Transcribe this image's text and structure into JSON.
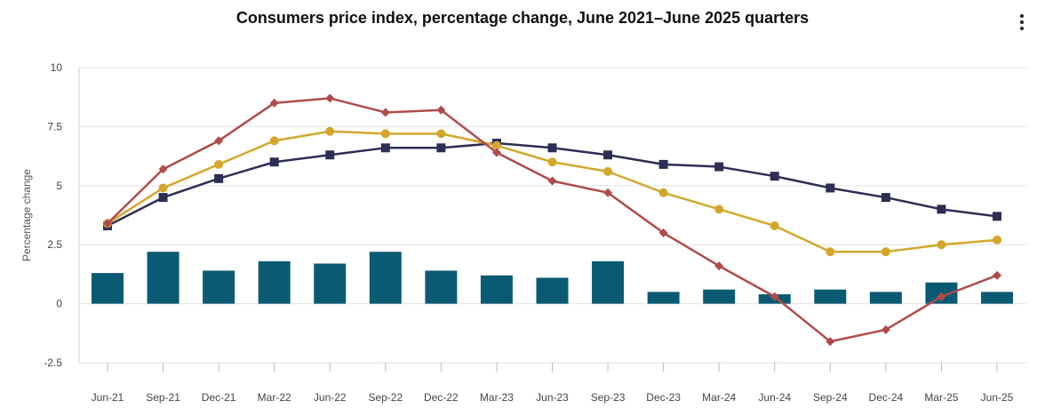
{
  "header": {
    "title": "Consumers price index, percentage change, June 2021–June 2025 quarters"
  },
  "menu": {
    "icon": "more-vertical-icon"
  },
  "chart_data": {
    "type": "bar+line",
    "title": "Consumers price index, percentage change, June 2021–June 2025 quarters",
    "ylabel": "Percentage change",
    "xlabel": "",
    "ylim": [
      -2.5,
      10
    ],
    "yticks": [
      -2.5,
      0,
      2.5,
      5,
      7.5,
      10
    ],
    "ytick_labels": [
      "-2.5",
      "0",
      "2.5",
      "5",
      "7.5",
      "10"
    ],
    "grid": true,
    "categories": [
      "Jun-21",
      "Sep-21",
      "Dec-21",
      "Mar-22",
      "Jun-22",
      "Sep-22",
      "Dec-22",
      "Mar-23",
      "Jun-23",
      "Sep-23",
      "Dec-23",
      "Mar-24",
      "Jun-24",
      "Sep-24",
      "Dec-24",
      "Mar-25",
      "Jun-25"
    ],
    "bars": {
      "color": "#0b5a73",
      "values": [
        1.3,
        2.2,
        1.4,
        1.8,
        1.7,
        2.2,
        1.4,
        1.2,
        1.1,
        1.8,
        0.5,
        0.6,
        0.4,
        0.6,
        0.5,
        0.9,
        0.5
      ]
    },
    "series": [
      {
        "marker": "square",
        "color": "#2e2d54",
        "values": [
          3.3,
          4.5,
          5.3,
          6.0,
          6.3,
          6.6,
          6.6,
          6.8,
          6.6,
          6.3,
          5.9,
          5.8,
          5.4,
          4.9,
          4.5,
          4.0,
          3.7
        ]
      },
      {
        "marker": "circle",
        "color": "#d4a72c",
        "values": [
          3.4,
          4.9,
          5.9,
          6.9,
          7.3,
          7.2,
          7.2,
          6.7,
          6.0,
          5.6,
          4.7,
          4.0,
          3.3,
          2.2,
          2.2,
          2.5,
          2.7
        ]
      },
      {
        "marker": "diamond",
        "color": "#b04b4b",
        "values": [
          3.4,
          5.7,
          6.9,
          8.5,
          8.7,
          8.1,
          8.2,
          6.4,
          5.2,
          4.7,
          3.0,
          1.6,
          0.3,
          -1.6,
          -1.1,
          0.3,
          1.2
        ]
      }
    ]
  }
}
